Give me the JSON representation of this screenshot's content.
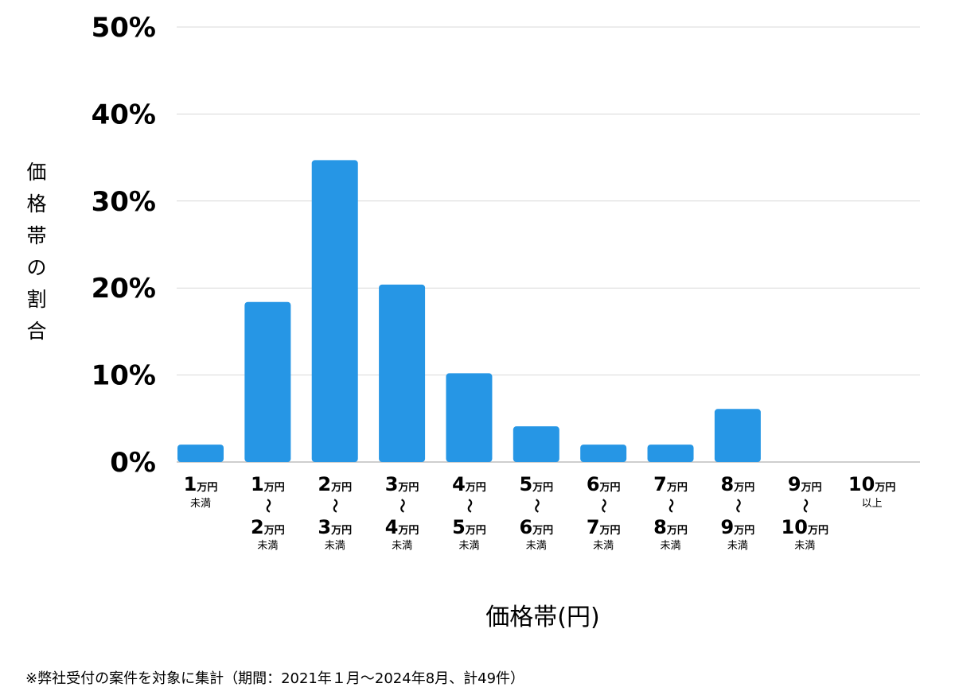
{
  "chart_data": {
    "type": "bar",
    "title": "",
    "xlabel": "価格帯(円)",
    "ylabel": "価格帯の割合",
    "ylim": [
      0,
      50
    ],
    "yticks": [
      0,
      10,
      20,
      30,
      40,
      50
    ],
    "ytick_labels": [
      "0%",
      "10%",
      "20%",
      "30%",
      "40%",
      "50%"
    ],
    "grid": true,
    "bar_color": "#2696e5",
    "categories": [
      {
        "from": "1",
        "from_unit": "万円",
        "to": "",
        "to_unit": "",
        "suffix": "未満"
      },
      {
        "from": "1",
        "from_unit": "万円",
        "tilde": "〜",
        "to": "2",
        "to_unit": "万円",
        "suffix": "未満"
      },
      {
        "from": "2",
        "from_unit": "万円",
        "tilde": "〜",
        "to": "3",
        "to_unit": "万円",
        "suffix": "未満"
      },
      {
        "from": "3",
        "from_unit": "万円",
        "tilde": "〜",
        "to": "4",
        "to_unit": "万円",
        "suffix": "未満"
      },
      {
        "from": "4",
        "from_unit": "万円",
        "tilde": "〜",
        "to": "5",
        "to_unit": "万円",
        "suffix": "未満"
      },
      {
        "from": "5",
        "from_unit": "万円",
        "tilde": "〜",
        "to": "6",
        "to_unit": "万円",
        "suffix": "未満"
      },
      {
        "from": "6",
        "from_unit": "万円",
        "tilde": "〜",
        "to": "7",
        "to_unit": "万円",
        "suffix": "未満"
      },
      {
        "from": "7",
        "from_unit": "万円",
        "tilde": "〜",
        "to": "8",
        "to_unit": "万円",
        "suffix": "未満"
      },
      {
        "from": "8",
        "from_unit": "万円",
        "tilde": "〜",
        "to": "9",
        "to_unit": "万円",
        "suffix": "未満"
      },
      {
        "from": "9",
        "from_unit": "万円",
        "tilde": "〜",
        "to": "10",
        "to_unit": "万円",
        "suffix": "未満"
      },
      {
        "from": "10",
        "from_unit": "万円",
        "to": "",
        "to_unit": "",
        "suffix": "以上"
      }
    ],
    "values": [
      2.0,
      18.4,
      34.7,
      20.4,
      10.2,
      4.1,
      2.0,
      2.0,
      6.1,
      0,
      0
    ]
  },
  "footnote": "※弊社受付の案件を対象に集計（期間：2021年１月〜2024年8月、計49件）"
}
